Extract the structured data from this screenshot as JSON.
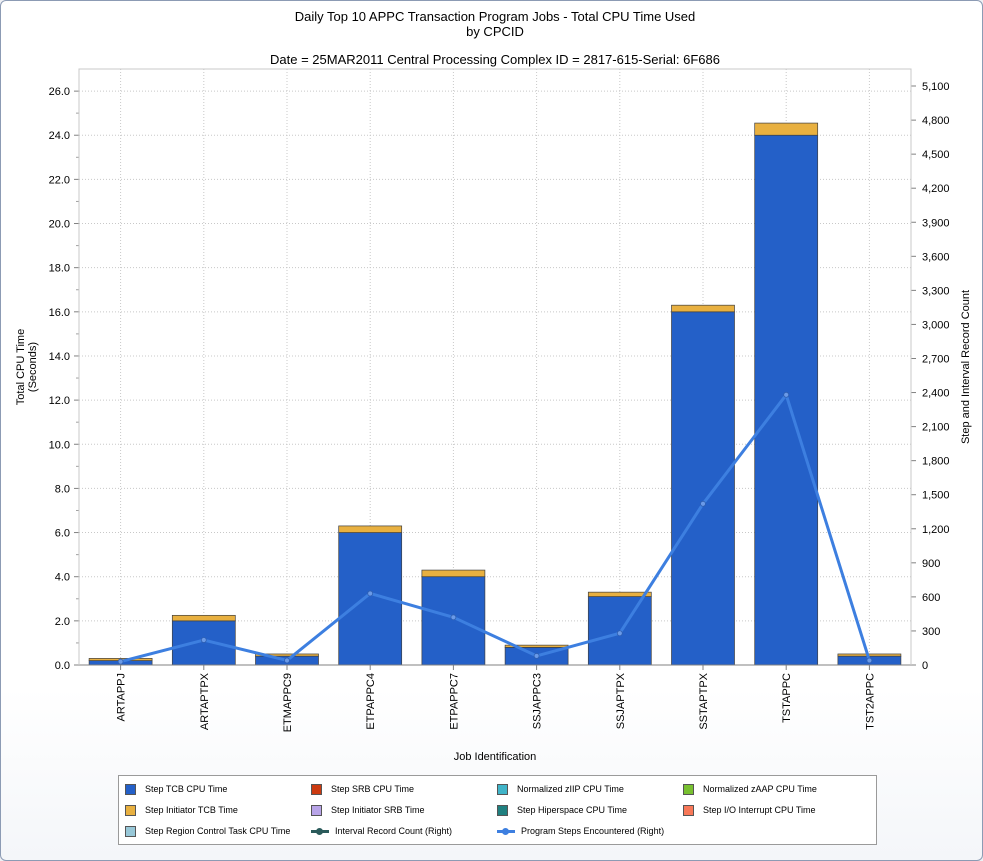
{
  "chart_data": {
    "type": "bar",
    "title": "Daily Top 10 APPC Transaction Program Jobs - Total CPU Time Used",
    "title_line2": "by CPCID",
    "subtitle": "Date = 25MAR2011  Central Processing Complex ID = 2817-615-Serial: 6F686",
    "xlabel": "Job Identification",
    "ylabel": "Total CPU Time",
    "ylabel2": "(Seconds)",
    "y2label": "Step and Interval Record Count",
    "categories": [
      "ARTAPPJ",
      "ARTAPTPX",
      "ETMAPPC9",
      "ETPAPPC4",
      "ETPAPPC7",
      "SSJAPPC3",
      "SSJAPTPX",
      "SSTAPTPX",
      "TSTAPPC",
      "TST2APPC"
    ],
    "ylim": [
      0,
      27
    ],
    "yticks": [
      "0.0",
      "2.0",
      "4.0",
      "6.0",
      "8.0",
      "10.0",
      "12.0",
      "14.0",
      "16.0",
      "18.0",
      "20.0",
      "22.0",
      "24.0",
      "26.0"
    ],
    "y2lim": [
      0,
      5250
    ],
    "y2ticks": [
      "0",
      "300",
      "600",
      "900",
      "1,200",
      "1,500",
      "1,800",
      "2,100",
      "2,400",
      "2,700",
      "3,000",
      "3,300",
      "3,600",
      "3,900",
      "4,200",
      "4,500",
      "4,800",
      "5,100"
    ],
    "series": [
      {
        "name": "Step TCB CPU Time",
        "color": "#2460c8",
        "stacked": true,
        "values": [
          0.2,
          2.0,
          0.4,
          6.0,
          4.0,
          0.8,
          3.1,
          16.0,
          24.0,
          0.4
        ]
      },
      {
        "name": "Step Initiator TCB Time",
        "color": "#e8b040",
        "stacked": true,
        "values": [
          0.1,
          0.25,
          0.1,
          0.3,
          0.3,
          0.1,
          0.2,
          0.3,
          0.55,
          0.1
        ]
      },
      {
        "name": "Program Steps Encountered (Right)",
        "color": "#3d7fe0",
        "axis": "right",
        "type": "line",
        "values": [
          30,
          220,
          40,
          630,
          420,
          80,
          280,
          1420,
          2380,
          40
        ]
      }
    ],
    "legend": [
      {
        "label": "Step TCB CPU Time",
        "kind": "box",
        "color": "#2460c8"
      },
      {
        "label": "Step SRB CPU Time",
        "kind": "box",
        "color": "#cc3a10"
      },
      {
        "label": "Normalized zIIP CPU Time",
        "kind": "box",
        "color": "#40b4c8"
      },
      {
        "label": "Normalized zAAP CPU Time",
        "kind": "box",
        "color": "#78c030"
      },
      {
        "label": "Step Initiator TCB Time",
        "kind": "box",
        "color": "#e8b040"
      },
      {
        "label": "Step Initiator SRB Time",
        "kind": "box",
        "color": "#b8a4e8"
      },
      {
        "label": "Step Hiperspace CPU Time",
        "kind": "box",
        "color": "#208080"
      },
      {
        "label": "Step I/O Interrupt CPU Time",
        "kind": "box",
        "color": "#f87858"
      },
      {
        "label": "Step Region Control Task CPU Time",
        "kind": "box",
        "color": "#98c8d8"
      },
      {
        "label": "Interval Record Count (Right)",
        "kind": "line",
        "color": "#2a5a5a"
      },
      {
        "label": "Program Steps Encountered (Right)",
        "kind": "line",
        "color": "#3d7fe0"
      }
    ]
  }
}
